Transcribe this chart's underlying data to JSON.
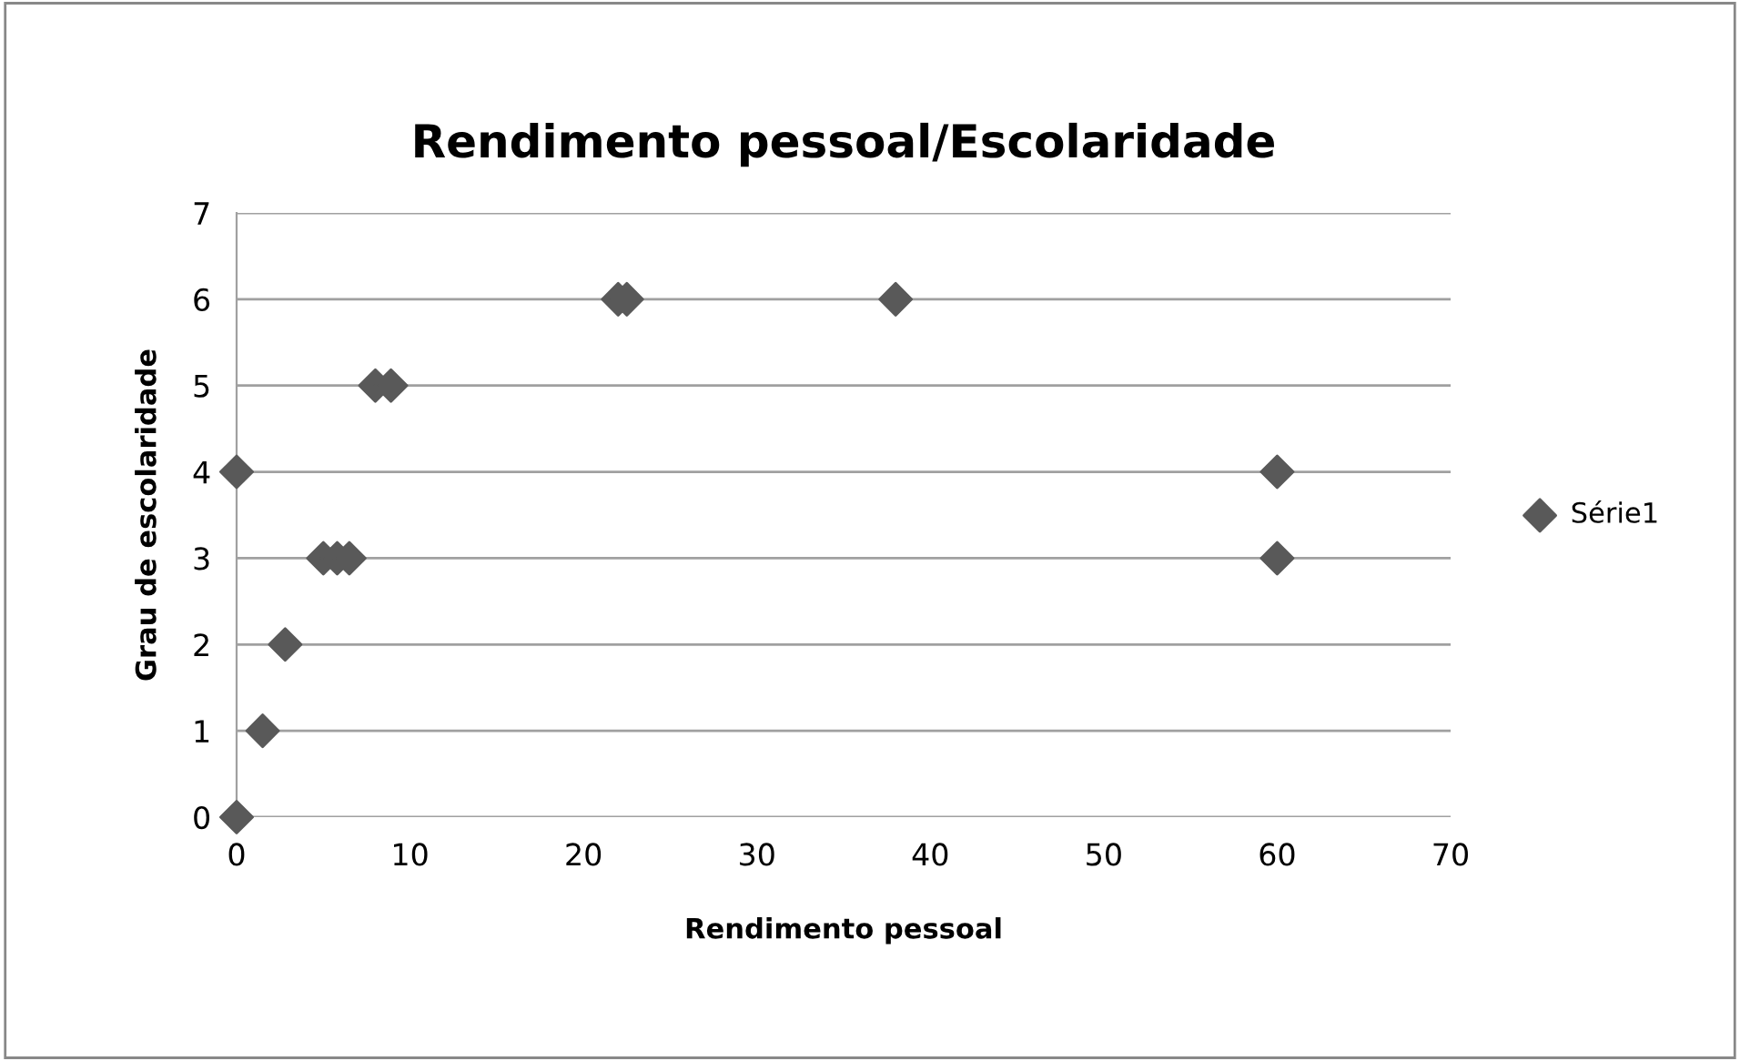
{
  "chart_data": {
    "type": "scatter",
    "title": "Rendimento pessoal/Escolaridade",
    "xlabel": "Rendimento pessoal",
    "ylabel": "Grau de escolaridade",
    "series": [
      {
        "name": "Série1",
        "color": "#595959",
        "x": [
          0,
          1.5,
          2.8,
          0,
          5.0,
          5.8,
          6.5,
          8.0,
          8.9,
          22.0,
          22.5,
          38,
          60,
          60
        ],
        "values": [
          0,
          1,
          2,
          4,
          3,
          3,
          3,
          5,
          5,
          6,
          6,
          6,
          4,
          3
        ]
      }
    ],
    "xlim": [
      0,
      70
    ],
    "xticks": [
      0,
      10,
      20,
      30,
      40,
      50,
      60,
      70
    ],
    "ylim": [
      0,
      7
    ],
    "yticks": [
      0,
      1,
      2,
      3,
      4,
      5,
      6,
      7
    ],
    "grid": "y",
    "legend": "right",
    "marker": "diamond"
  }
}
